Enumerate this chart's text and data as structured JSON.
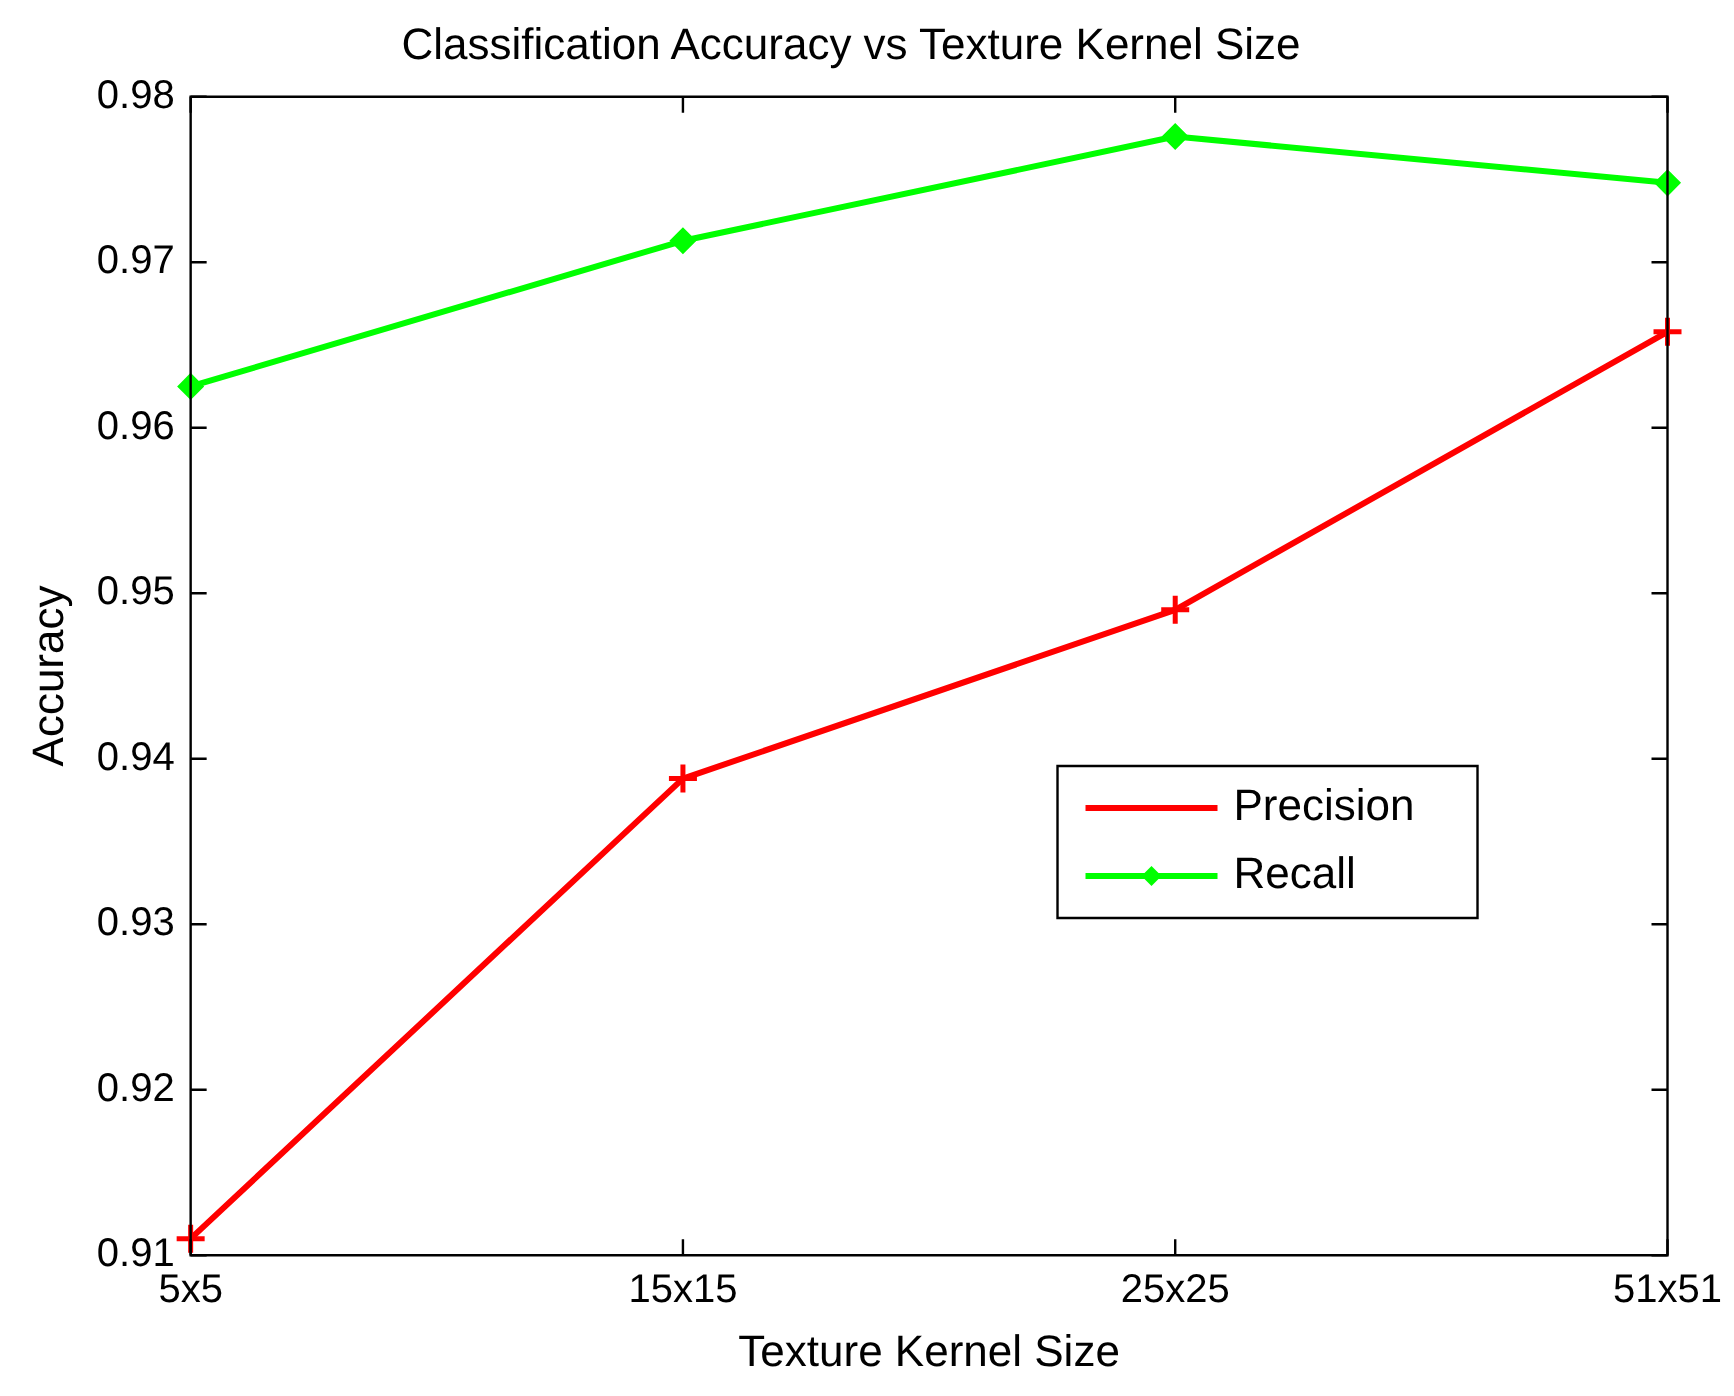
{
  "chart_data": {
    "type": "line",
    "title": "Classification Accuracy vs Texture Kernel Size",
    "xlabel": "Texture Kernel Size",
    "ylabel": "Accuracy",
    "categories": [
      "5x5",
      "15x15",
      "25x25",
      "51x51"
    ],
    "series": [
      {
        "name": "Precision",
        "color": "#ff0000",
        "marker": "cross",
        "values": [
          0.911,
          0.9388,
          0.949,
          0.9658
        ]
      },
      {
        "name": "Recall",
        "color": "#00ff00",
        "marker": "diamond",
        "values": [
          0.9625,
          0.9713,
          0.9776,
          0.9748
        ]
      }
    ],
    "ylim": [
      0.91,
      0.98
    ],
    "yticks": [
      0.91,
      0.92,
      0.93,
      0.94,
      0.95,
      0.96,
      0.97,
      0.98
    ],
    "grid": false,
    "legend": "right",
    "line_style": "solid"
  }
}
